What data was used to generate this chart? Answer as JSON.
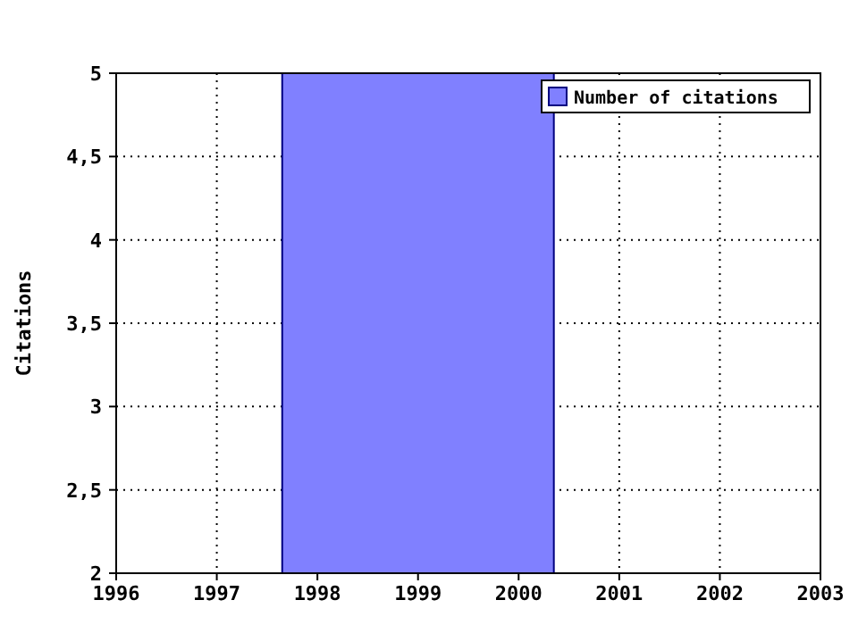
{
  "chart_data": {
    "type": "histogram",
    "ylabel": "Citations",
    "bins": [
      1997.65,
      2000.35
    ],
    "series": [
      {
        "name": "Number of citations",
        "color": "#8080ff",
        "values": [
          5
        ]
      }
    ],
    "xlim": [
      1996,
      2003
    ],
    "xticks": [
      1996,
      1997,
      1998,
      1999,
      2000,
      2001,
      2002,
      2003
    ],
    "ylim": [
      2,
      5
    ],
    "yticks": [
      2,
      {
        "value": 2.5,
        "label": "2,5"
      },
      3,
      {
        "value": 3.5,
        "label": "3,5"
      },
      4,
      {
        "value": 4.5,
        "label": "4,5"
      },
      5
    ],
    "grid": true,
    "legend": "top right"
  }
}
